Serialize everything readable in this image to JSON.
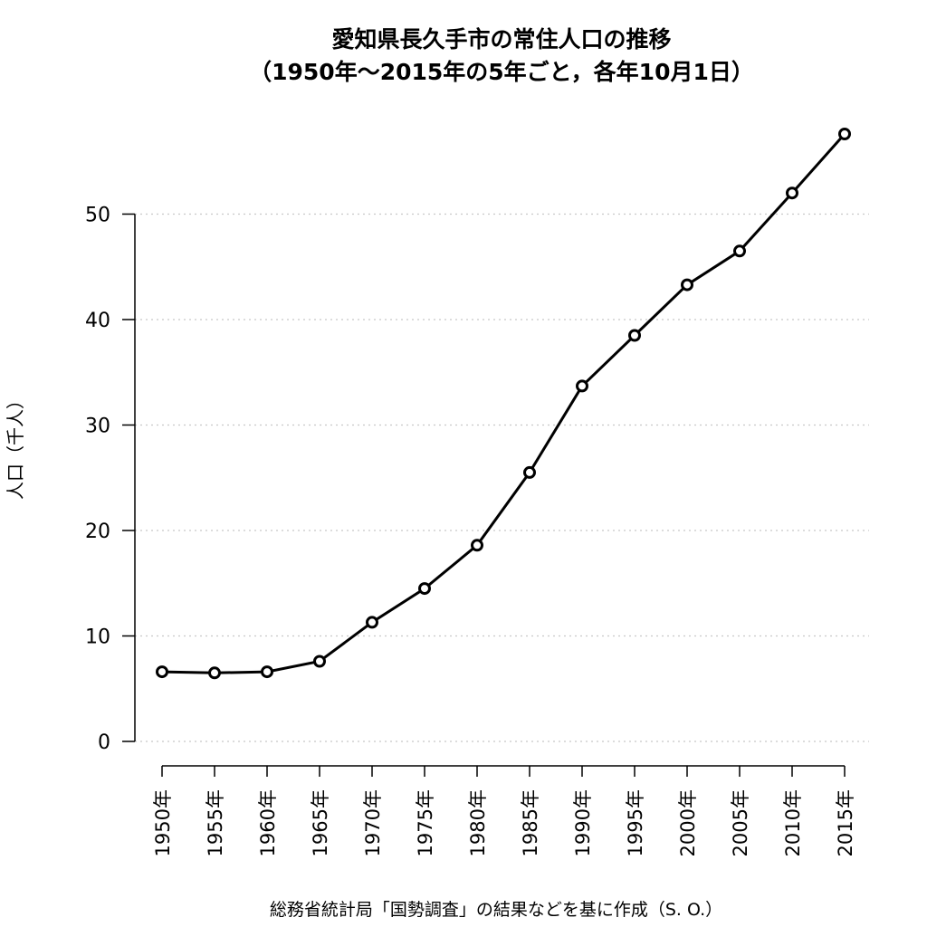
{
  "chart_data": {
    "type": "line",
    "title_line1": "愛知県長久手市の常住人口の推移",
    "title_line2": "（1950年～2015年の5年ごと，各年10月1日）",
    "ylabel": "人口（千人）",
    "caption": "総務省統計局「国勢調査」の結果などを基に作成（S. O.）",
    "categories": [
      "1950年",
      "1955年",
      "1960年",
      "1965年",
      "1970年",
      "1975年",
      "1980年",
      "1985年",
      "1990年",
      "1995年",
      "2000年",
      "2005年",
      "2010年",
      "2015年"
    ],
    "values": [
      6.6,
      6.5,
      6.6,
      7.6,
      11.3,
      14.5,
      18.6,
      25.5,
      33.7,
      38.5,
      43.3,
      46.5,
      52.0,
      57.6
    ],
    "yticks": [
      0,
      10,
      20,
      30,
      40,
      50
    ],
    "ylim": [
      0,
      60
    ],
    "grid": "horizontal-dotted",
    "line_color": "#000000",
    "grid_color": "#c8c8c8"
  }
}
